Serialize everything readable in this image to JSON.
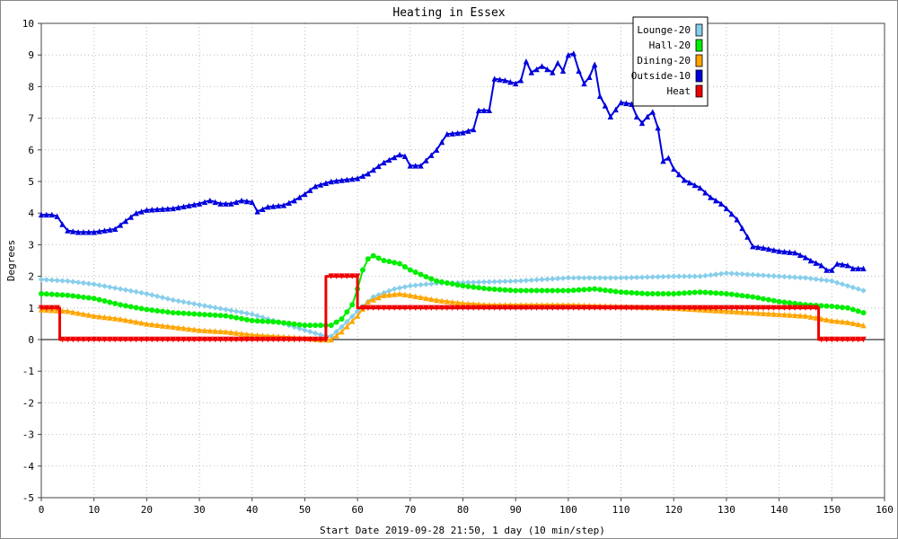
{
  "chart_data": {
    "type": "line",
    "title": "Heating in Essex",
    "xlabel": "Start Date 2019-09-28 21:50, 1 day (10 min/step)",
    "ylabel": "Degrees",
    "xlim": [
      0,
      160
    ],
    "ylim": [
      -5,
      10
    ],
    "x_ticks": [
      0,
      10,
      20,
      30,
      40,
      50,
      60,
      70,
      80,
      90,
      100,
      110,
      120,
      130,
      140,
      150,
      160
    ],
    "y_ticks": [
      -5,
      -4,
      -3,
      -2,
      -1,
      0,
      1,
      2,
      3,
      4,
      5,
      6,
      7,
      8,
      9,
      10
    ],
    "grid": true,
    "legend_position": "top-right",
    "series": [
      {
        "name": "Lounge-20",
        "color": "#87ceeb",
        "marker": "diamond",
        "points": [
          [
            0,
            1.9
          ],
          [
            5,
            1.85
          ],
          [
            10,
            1.75
          ],
          [
            15,
            1.6
          ],
          [
            20,
            1.45
          ],
          [
            25,
            1.25
          ],
          [
            30,
            1.1
          ],
          [
            35,
            0.95
          ],
          [
            40,
            0.8
          ],
          [
            45,
            0.55
          ],
          [
            50,
            0.3
          ],
          [
            53,
            0.15
          ],
          [
            55,
            0.1
          ],
          [
            57,
            0.4
          ],
          [
            60,
            0.9
          ],
          [
            63,
            1.35
          ],
          [
            67,
            1.6
          ],
          [
            70,
            1.7
          ],
          [
            75,
            1.78
          ],
          [
            80,
            1.8
          ],
          [
            90,
            1.85
          ],
          [
            95,
            1.9
          ],
          [
            100,
            1.95
          ],
          [
            110,
            1.95
          ],
          [
            120,
            2.0
          ],
          [
            125,
            2.0
          ],
          [
            130,
            2.1
          ],
          [
            135,
            2.05
          ],
          [
            140,
            2.0
          ],
          [
            145,
            1.95
          ],
          [
            150,
            1.85
          ],
          [
            153,
            1.7
          ],
          [
            156,
            1.55
          ]
        ]
      },
      {
        "name": "Hall-20",
        "color": "#00ee00",
        "marker": "circle",
        "points": [
          [
            0,
            1.45
          ],
          [
            5,
            1.4
          ],
          [
            10,
            1.3
          ],
          [
            15,
            1.1
          ],
          [
            20,
            0.95
          ],
          [
            25,
            0.85
          ],
          [
            30,
            0.8
          ],
          [
            35,
            0.75
          ],
          [
            40,
            0.6
          ],
          [
            45,
            0.55
          ],
          [
            50,
            0.45
          ],
          [
            53,
            0.45
          ],
          [
            55,
            0.45
          ],
          [
            57,
            0.65
          ],
          [
            59,
            1.1
          ],
          [
            60,
            1.6
          ],
          [
            61,
            2.2
          ],
          [
            62,
            2.55
          ],
          [
            63,
            2.65
          ],
          [
            65,
            2.5
          ],
          [
            68,
            2.4
          ],
          [
            70,
            2.2
          ],
          [
            75,
            1.85
          ],
          [
            80,
            1.7
          ],
          [
            85,
            1.6
          ],
          [
            90,
            1.55
          ],
          [
            95,
            1.55
          ],
          [
            100,
            1.55
          ],
          [
            105,
            1.6
          ],
          [
            110,
            1.5
          ],
          [
            115,
            1.45
          ],
          [
            120,
            1.45
          ],
          [
            125,
            1.5
          ],
          [
            130,
            1.45
          ],
          [
            135,
            1.35
          ],
          [
            140,
            1.2
          ],
          [
            145,
            1.1
          ],
          [
            150,
            1.05
          ],
          [
            153,
            1.0
          ],
          [
            156,
            0.85
          ]
        ]
      },
      {
        "name": "Dining-20",
        "color": "#ffa500",
        "marker": "triangle-up",
        "points": [
          [
            0,
            0.95
          ],
          [
            5,
            0.9
          ],
          [
            10,
            0.75
          ],
          [
            15,
            0.65
          ],
          [
            20,
            0.5
          ],
          [
            25,
            0.4
          ],
          [
            30,
            0.3
          ],
          [
            35,
            0.25
          ],
          [
            40,
            0.15
          ],
          [
            45,
            0.1
          ],
          [
            50,
            0.05
          ],
          [
            53,
            0.0
          ],
          [
            55,
            0.0
          ],
          [
            57,
            0.25
          ],
          [
            60,
            0.75
          ],
          [
            62,
            1.2
          ],
          [
            65,
            1.4
          ],
          [
            68,
            1.45
          ],
          [
            70,
            1.4
          ],
          [
            75,
            1.25
          ],
          [
            80,
            1.15
          ],
          [
            85,
            1.1
          ],
          [
            90,
            1.1
          ],
          [
            100,
            1.1
          ],
          [
            110,
            1.05
          ],
          [
            120,
            1.0
          ],
          [
            125,
            0.95
          ],
          [
            130,
            0.9
          ],
          [
            135,
            0.85
          ],
          [
            140,
            0.8
          ],
          [
            145,
            0.75
          ],
          [
            150,
            0.6
          ],
          [
            153,
            0.55
          ],
          [
            156,
            0.45
          ]
        ]
      },
      {
        "name": "Outside-10",
        "color": "#0000dd",
        "marker": "triangle-up",
        "points": [
          [
            0,
            3.95
          ],
          [
            2,
            3.95
          ],
          [
            3,
            3.9
          ],
          [
            4,
            3.65
          ],
          [
            5,
            3.45
          ],
          [
            7,
            3.4
          ],
          [
            10,
            3.4
          ],
          [
            12,
            3.45
          ],
          [
            14,
            3.5
          ],
          [
            16,
            3.75
          ],
          [
            18,
            4.0
          ],
          [
            20,
            4.1
          ],
          [
            25,
            4.15
          ],
          [
            30,
            4.3
          ],
          [
            32,
            4.4
          ],
          [
            34,
            4.3
          ],
          [
            36,
            4.3
          ],
          [
            38,
            4.4
          ],
          [
            40,
            4.35
          ],
          [
            41,
            4.05
          ],
          [
            43,
            4.2
          ],
          [
            46,
            4.25
          ],
          [
            48,
            4.4
          ],
          [
            50,
            4.6
          ],
          [
            52,
            4.85
          ],
          [
            55,
            5.0
          ],
          [
            60,
            5.1
          ],
          [
            62,
            5.25
          ],
          [
            65,
            5.6
          ],
          [
            68,
            5.85
          ],
          [
            69,
            5.8
          ],
          [
            70,
            5.5
          ],
          [
            72,
            5.5
          ],
          [
            75,
            6.0
          ],
          [
            77,
            6.5
          ],
          [
            80,
            6.55
          ],
          [
            82,
            6.65
          ],
          [
            83,
            7.25
          ],
          [
            85,
            7.25
          ],
          [
            86,
            8.25
          ],
          [
            88,
            8.2
          ],
          [
            90,
            8.1
          ],
          [
            91,
            8.2
          ],
          [
            92,
            8.8
          ],
          [
            93,
            8.45
          ],
          [
            95,
            8.65
          ],
          [
            97,
            8.45
          ],
          [
            98,
            8.75
          ],
          [
            99,
            8.5
          ],
          [
            100,
            9.0
          ],
          [
            101,
            9.05
          ],
          [
            102,
            8.5
          ],
          [
            103,
            8.1
          ],
          [
            104,
            8.3
          ],
          [
            105,
            8.7
          ],
          [
            106,
            7.7
          ],
          [
            107,
            7.4
          ],
          [
            108,
            7.05
          ],
          [
            110,
            7.5
          ],
          [
            112,
            7.45
          ],
          [
            113,
            7.05
          ],
          [
            114,
            6.85
          ],
          [
            115,
            7.05
          ],
          [
            116,
            7.2
          ],
          [
            117,
            6.7
          ],
          [
            118,
            5.65
          ],
          [
            119,
            5.75
          ],
          [
            120,
            5.4
          ],
          [
            122,
            5.05
          ],
          [
            125,
            4.8
          ],
          [
            127,
            4.5
          ],
          [
            129,
            4.3
          ],
          [
            130,
            4.15
          ],
          [
            132,
            3.8
          ],
          [
            134,
            3.25
          ],
          [
            135,
            2.95
          ],
          [
            137,
            2.9
          ],
          [
            140,
            2.8
          ],
          [
            143,
            2.75
          ],
          [
            145,
            2.6
          ],
          [
            146,
            2.5
          ],
          [
            148,
            2.35
          ],
          [
            149,
            2.2
          ],
          [
            150,
            2.2
          ],
          [
            151,
            2.4
          ],
          [
            153,
            2.35
          ],
          [
            154,
            2.25
          ],
          [
            156,
            2.25
          ]
        ]
      },
      {
        "name": "Heat",
        "color": "#ee0000",
        "marker": "triangle-down",
        "points": [
          [
            0,
            1.0
          ],
          [
            3.5,
            1.0
          ],
          [
            3.5,
            0.0
          ],
          [
            54,
            0.0
          ],
          [
            54,
            2.0
          ],
          [
            60,
            2.0
          ],
          [
            60,
            1.0
          ],
          [
            147.5,
            1.0
          ],
          [
            147.5,
            0.0
          ],
          [
            156,
            0.0
          ]
        ]
      }
    ]
  }
}
